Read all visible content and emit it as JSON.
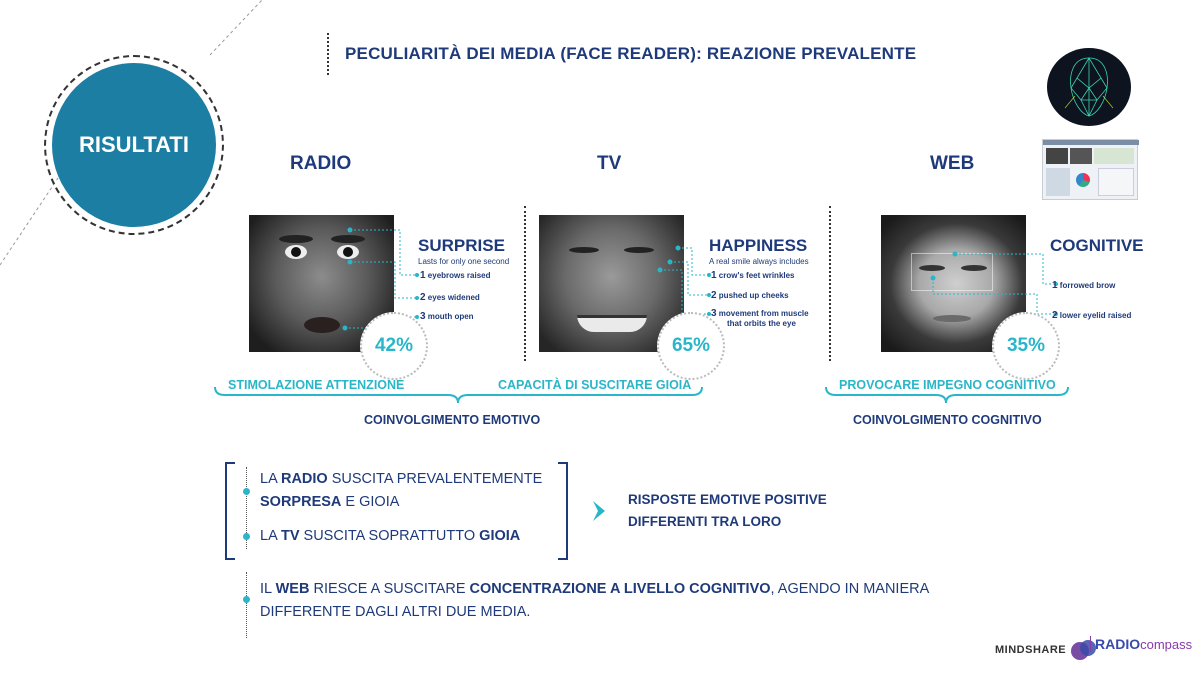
{
  "header": {
    "section_label": "RISULTATI",
    "title": "PECULIARITÀ DEI MEDIA (FACE READER): REAZIONE PREVALENTE"
  },
  "media": [
    {
      "label": "RADIO",
      "emotion": "SURPRISE",
      "description": "Lasts for only one second",
      "features": [
        {
          "num": "1",
          "text": "eyebrows raised"
        },
        {
          "num": "2",
          "text": "eyes widened"
        },
        {
          "num": "3",
          "text": "mouth open"
        }
      ],
      "percentage": "42%",
      "caption": "STIMOLAZIONE ATTENZIONE"
    },
    {
      "label": "TV",
      "emotion": "HAPPINESS",
      "description": "A real smile always includes",
      "features": [
        {
          "num": "1",
          "text": "crow's feet wrinkles"
        },
        {
          "num": "2",
          "text": "pushed up cheeks"
        },
        {
          "num": "3",
          "text": "movement from muscle",
          "text2": "that orbits the eye"
        }
      ],
      "percentage": "65%",
      "caption": "CAPACITÀ DI SUSCITARE GIOIA"
    },
    {
      "label": "WEB",
      "emotion": "COGNITIVE",
      "description": "",
      "features": [
        {
          "num": "1",
          "text": "forrowed brow"
        },
        {
          "num": "2",
          "text": "lower eyelid raised"
        }
      ],
      "percentage": "35%",
      "caption": "PROVOCARE IMPEGNO COGNITIVO"
    }
  ],
  "groups": {
    "emotional": "COINVOLGIMENTO EMOTIVO",
    "cognitive": "COINVOLGIMENTO COGNITIVO"
  },
  "findings": {
    "radio": {
      "p1": "LA ",
      "b1": "RADIO",
      "p2": " SUSCITA PREVALENTEMENTE",
      "b2": "SORPRESA",
      "p3": " E GIOIA"
    },
    "tv": {
      "p1": "LA ",
      "b1": "TV",
      "p2": " SUSCITA SOPRATTUTTO ",
      "b2": "GIOIA"
    },
    "result_line1": "RISPOSTE EMOTIVE POSITIVE",
    "result_line2": "DIFFERENTI TRA LORO",
    "web": {
      "p1": "IL ",
      "b1": "WEB",
      "p2": " RIESCE A SUSCITARE ",
      "b2": "CONCENTRAZIONE A LIVELLO COGNITIVO",
      "p3": ", AGENDO IN MANIERA",
      "line2": "DIFFERENTE DAGLI ALTRI DUE MEDIA."
    }
  },
  "logos": {
    "mindshare": "MINDSHARE",
    "radio_part": "RADIO",
    "compass_part": "compass"
  },
  "colors": {
    "navy": "#1f3a7a",
    "teal": "#29b6c9",
    "circle": "#1c7ea3"
  }
}
